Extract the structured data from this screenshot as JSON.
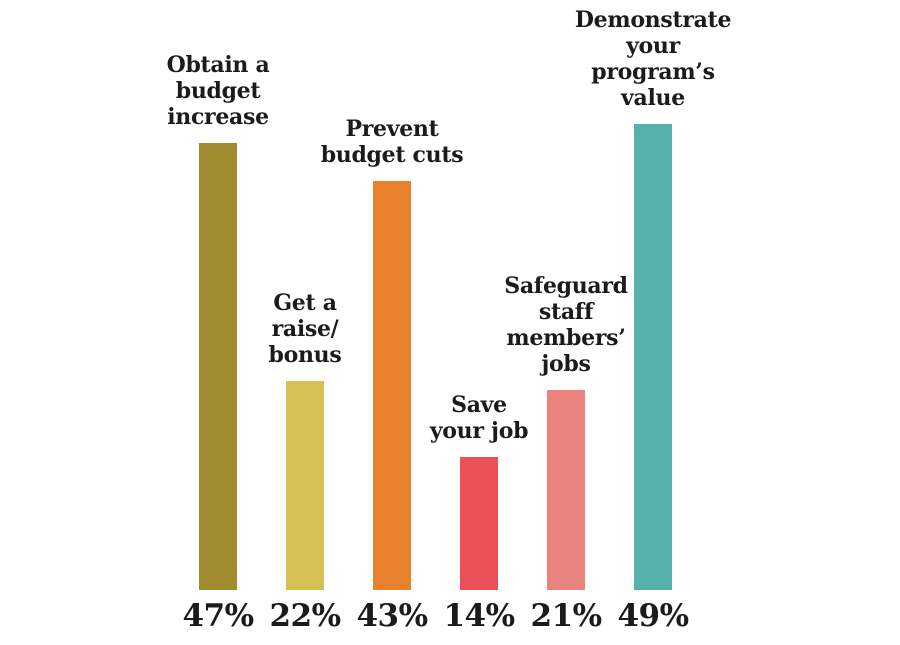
{
  "chart_data": {
    "type": "bar",
    "title": "",
    "xlabel": "",
    "ylabel": "",
    "ylim": [
      0,
      50
    ],
    "grid": false,
    "legend": false,
    "axes_visible": false,
    "categories": [
      "Obtain a budget increase",
      "Get a raise/bonus",
      "Prevent budget cuts",
      "Save your job",
      "Safeguard staff members’ jobs",
      "Demonstrate your program’s value"
    ],
    "category_lines": [
      [
        "Obtain a",
        "budget",
        "increase"
      ],
      [
        "Get a",
        "raise/",
        "bonus"
      ],
      [
        "Prevent",
        "budget cuts"
      ],
      [
        "Save",
        "your job"
      ],
      [
        "Safeguard",
        "staff",
        "members’",
        "jobs"
      ],
      [
        "Demonstrate",
        "your",
        "program’s",
        "value"
      ]
    ],
    "values": [
      47,
      22,
      43,
      14,
      21,
      49
    ],
    "value_labels": [
      "47%",
      "22%",
      "43%",
      "14%",
      "21%",
      "49%"
    ],
    "bar_colors": [
      "#a18c2f",
      "#d6c052",
      "#e8812c",
      "#ea5257",
      "#e9837e",
      "#58b0ac"
    ],
    "text_color": "#1b1b1b",
    "background_color": "#ffffff"
  }
}
